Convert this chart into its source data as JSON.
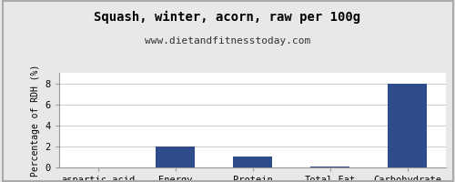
{
  "title": "Squash, winter, acorn, raw per 100g",
  "subtitle": "www.dietandfitnesstoday.com",
  "categories": [
    "aspartic-acid",
    "Energy",
    "Protein",
    "Total-Fat",
    "Carbohydrate"
  ],
  "values": [
    0.0,
    2.0,
    1.0,
    0.1,
    8.0
  ],
  "bar_color": "#2e4b8c",
  "ylabel": "Percentage of RDH (%)",
  "ylim": [
    0,
    9
  ],
  "yticks": [
    0,
    2,
    4,
    6,
    8
  ],
  "background_color": "#e8e8e8",
  "plot_bg_color": "#ffffff",
  "title_fontsize": 10,
  "subtitle_fontsize": 8,
  "ylabel_fontsize": 7,
  "tick_fontsize": 7.5
}
